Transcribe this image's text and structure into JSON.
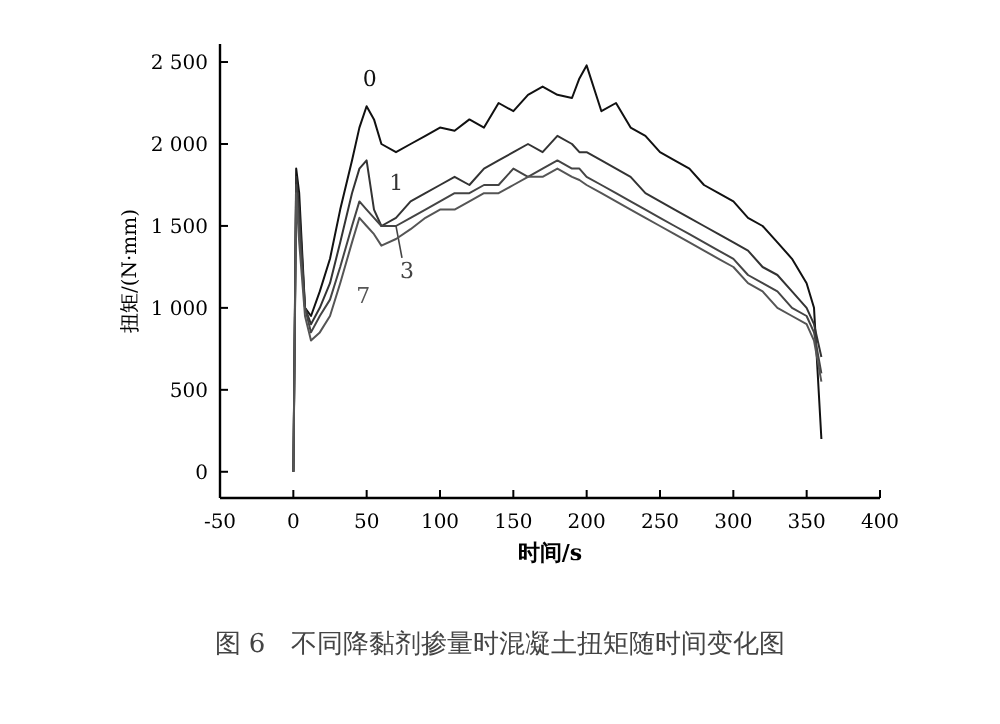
{
  "chart_data": {
    "type": "line",
    "xlabel": "时间/s",
    "ylabel": "扭矩/(N·mm)",
    "annotations": [
      "图 6　不同降黏剂掺量时混凝土扭矩随时间变化图"
    ],
    "x": [
      0,
      2,
      4,
      8,
      12,
      18,
      25,
      32,
      40,
      45,
      50,
      55,
      60,
      70,
      80,
      90,
      100,
      110,
      120,
      130,
      140,
      150,
      160,
      170,
      180,
      190,
      195,
      200,
      210,
      220,
      230,
      240,
      250,
      260,
      270,
      280,
      290,
      300,
      310,
      320,
      330,
      340,
      350,
      355,
      360
    ],
    "xlim": [
      -50,
      400
    ],
    "xticks": [
      -50,
      0,
      50,
      100,
      150,
      200,
      250,
      300,
      350,
      400
    ],
    "ylim": [
      -160,
      2610
    ],
    "yticks": [
      0,
      {
        "value": 500,
        "label": "500"
      },
      {
        "value": 1000,
        "label": "1 000"
      },
      {
        "value": 1500,
        "label": "1 500"
      },
      {
        "value": 2000,
        "label": "2 000"
      },
      {
        "value": 2500,
        "label": "2 500"
      }
    ],
    "grid": false,
    "marker": "none",
    "line_style": "solid",
    "series": [
      {
        "name": "0",
        "color": "#111111",
        "values": [
          0,
          1850,
          1700,
          1000,
          950,
          1100,
          1300,
          1600,
          1900,
          2100,
          2230,
          2150,
          2000,
          1950,
          2000,
          2050,
          2100,
          2080,
          2150,
          2100,
          2250,
          2200,
          2300,
          2350,
          2300,
          2280,
          2400,
          2480,
          2200,
          2250,
          2100,
          2050,
          1950,
          1900,
          1850,
          1750,
          1700,
          1650,
          1550,
          1500,
          1400,
          1300,
          1150,
          1000,
          200
        ]
      },
      {
        "name": "1",
        "color": "#333333",
        "values": [
          0,
          1800,
          1600,
          1000,
          900,
          1000,
          1150,
          1400,
          1700,
          1850,
          1900,
          1600,
          1500,
          1550,
          1650,
          1700,
          1750,
          1800,
          1750,
          1850,
          1900,
          1950,
          2000,
          1950,
          2050,
          2000,
          1950,
          1950,
          1900,
          1850,
          1800,
          1700,
          1650,
          1600,
          1550,
          1500,
          1450,
          1400,
          1350,
          1250,
          1200,
          1100,
          1000,
          900,
          700
        ]
      },
      {
        "name": "3",
        "color": "#444444",
        "values": [
          0,
          1750,
          1500,
          1000,
          850,
          950,
          1050,
          1250,
          1500,
          1650,
          1600,
          1550,
          1500,
          1500,
          1550,
          1600,
          1650,
          1700,
          1700,
          1750,
          1750,
          1850,
          1800,
          1850,
          1900,
          1850,
          1850,
          1800,
          1750,
          1700,
          1650,
          1600,
          1550,
          1500,
          1450,
          1400,
          1350,
          1300,
          1200,
          1150,
          1100,
          1000,
          950,
          850,
          600
        ]
      },
      {
        "name": "7",
        "color": "#555555",
        "values": [
          0,
          1700,
          1400,
          950,
          800,
          850,
          950,
          1150,
          1400,
          1550,
          1500,
          1450,
          1380,
          1420,
          1480,
          1550,
          1600,
          1600,
          1650,
          1700,
          1700,
          1750,
          1800,
          1800,
          1850,
          1800,
          1780,
          1750,
          1700,
          1650,
          1600,
          1550,
          1500,
          1450,
          1400,
          1350,
          1300,
          1250,
          1150,
          1100,
          1000,
          950,
          900,
          800,
          550
        ]
      }
    ]
  }
}
